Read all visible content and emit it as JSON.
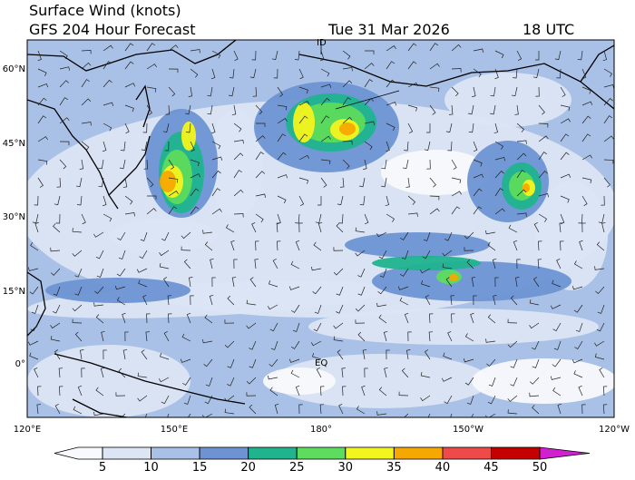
{
  "header": {
    "title": "Surface Wind (knots)",
    "model": "GFS 204 Hour Forecast",
    "date": "Tue 31 Mar 2026",
    "time": "18 UTC"
  },
  "map": {
    "lat_labels": [
      "60°N",
      "45°N",
      "30°N",
      "15°N",
      "0°"
    ],
    "lon_labels": [
      "120°E",
      "150°E",
      "180°",
      "150°W",
      "120°W"
    ],
    "annotations": [
      "ID",
      "EQ"
    ]
  },
  "colorbar": {
    "ticks": [
      5,
      10,
      15,
      20,
      25,
      30,
      35,
      40,
      45,
      50
    ],
    "colors": [
      "#f8f9fc",
      "#dce5f4",
      "#a9c1e6",
      "#6d93d3",
      "#1fb38e",
      "#5ddc5d",
      "#f4f41e",
      "#f7a800",
      "#ef4a4a",
      "#c40000",
      "#d020d0"
    ]
  }
}
